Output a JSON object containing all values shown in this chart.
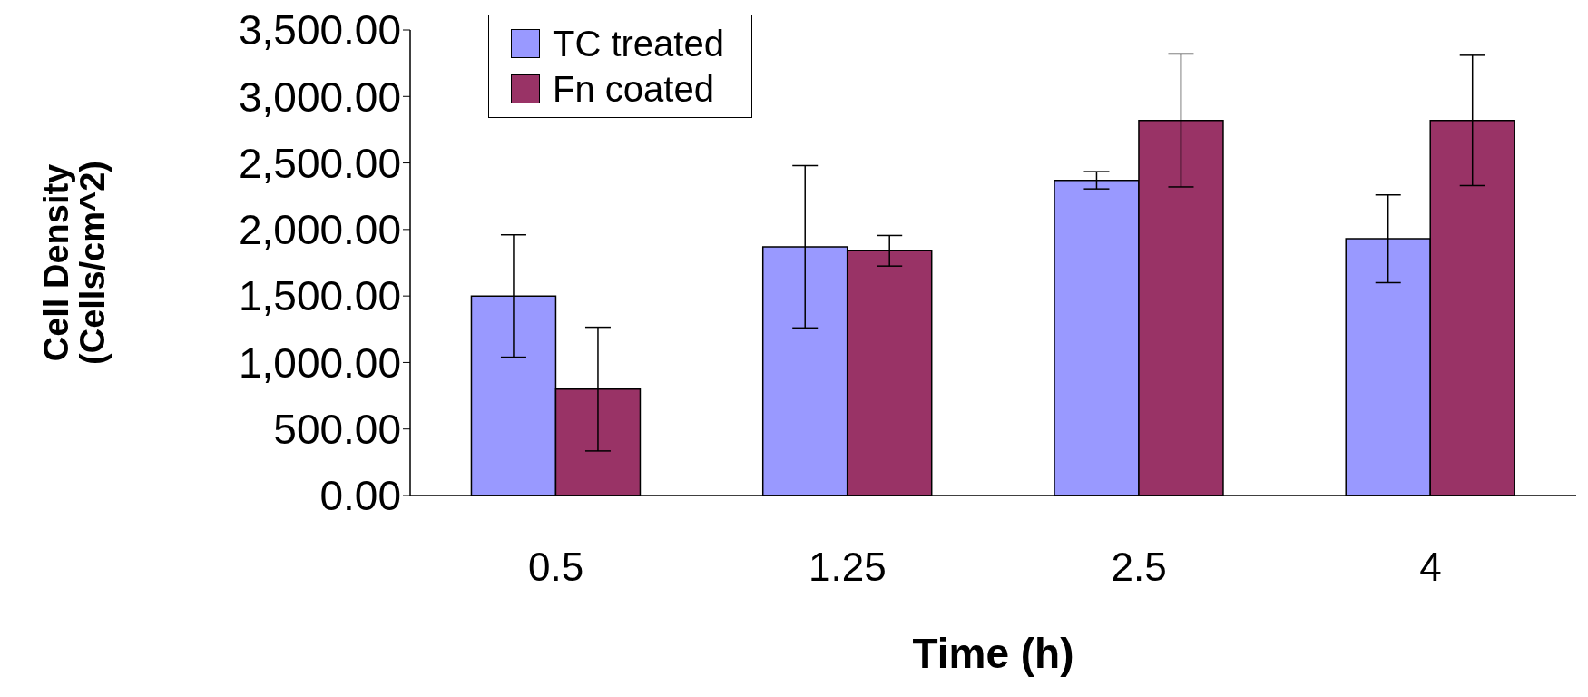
{
  "chart_data": {
    "type": "bar",
    "xlabel": "Time (h)",
    "ylabel": "Cell Density\n(Cells/cm^2)",
    "categories": [
      "0.5",
      "1.25",
      "2.5",
      "4"
    ],
    "series": [
      {
        "name": "TC treated",
        "color": "#9999ff",
        "values": [
          1500,
          1870,
          2370,
          1930
        ],
        "errors": [
          460,
          610,
          65,
          330
        ]
      },
      {
        "name": "Fn coated",
        "color": "#993366",
        "values": [
          800,
          1840,
          2820,
          2820
        ],
        "errors": [
          465,
          115,
          500,
          490
        ]
      }
    ],
    "ylim": [
      0,
      3500
    ],
    "yticks": [
      {
        "value": 0,
        "label": "0.00"
      },
      {
        "value": 500,
        "label": "500.00"
      },
      {
        "value": 1000,
        "label": "1,000.00"
      },
      {
        "value": 1500,
        "label": "1,500.00"
      },
      {
        "value": 2000,
        "label": "2,000.00"
      },
      {
        "value": 2500,
        "label": "2,500.00"
      },
      {
        "value": 3000,
        "label": "3,000.00"
      },
      {
        "value": 3500,
        "label": "3,500.00"
      }
    ],
    "grid": false,
    "legend": "top left"
  }
}
